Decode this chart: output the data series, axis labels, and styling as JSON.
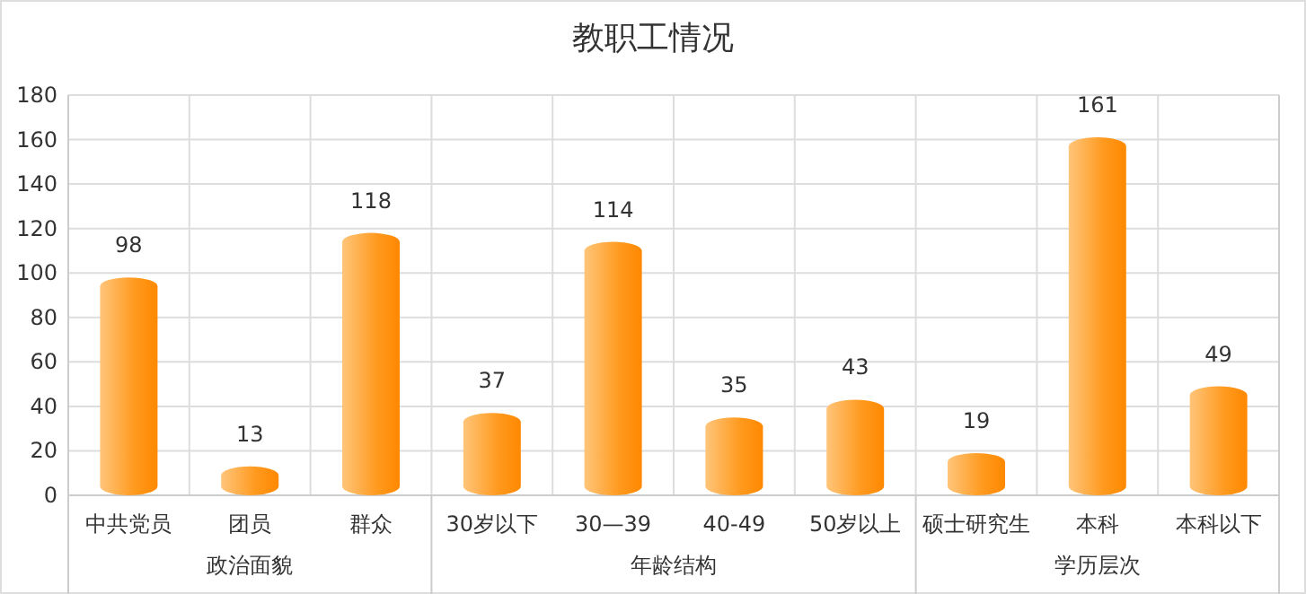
{
  "chart_data": {
    "type": "bar",
    "title": "教职工情况",
    "categories": [
      "中共党员",
      "团员",
      "群众",
      "30岁以下",
      "30—39",
      "40-49",
      "50岁以上",
      "硕士研究生",
      "本科",
      "本科以下"
    ],
    "values": [
      98,
      13,
      118,
      37,
      114,
      35,
      43,
      19,
      161,
      49
    ],
    "color": "#ff9a1f",
    "ylim": [
      0,
      180
    ],
    "yticks": [
      0,
      20,
      40,
      60,
      80,
      100,
      120,
      140,
      160,
      180
    ],
    "grid": true,
    "data_labels": true,
    "annotations": [
      "政治面貌",
      "年龄结构",
      "学历层次"
    ]
  }
}
